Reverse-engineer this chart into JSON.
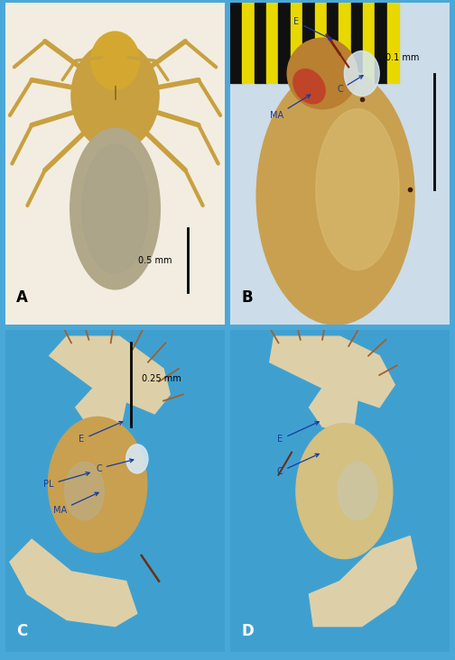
{
  "fig_width": 5.04,
  "fig_height": 7.32,
  "dpi": 100,
  "figure_bg": "#4aa8d8",
  "border_color": "#4aa8d8",
  "panel_A_bg": "#f2ede0",
  "panel_B_bg": "#ccdce8",
  "panel_C_bg": "#3fa0d0",
  "panel_D_bg": "#3fa0d0",
  "label_color": "#1a3a9c",
  "label_fontsize": 12,
  "annotation_fontsize": 7,
  "scale_text_fontsize": 7,
  "panel_A_label": "A",
  "panel_B_label": "B",
  "panel_C_label": "C",
  "panel_D_label": "D",
  "scale_bar_A": "0.5 mm",
  "scale_bar_B": "0.1 mm",
  "scale_bar_C": "0.25 mm",
  "spider_ceph_color": "#c8a040",
  "spider_head_color": "#d4a830",
  "spider_abd_color": "#b0a888",
  "spider_leg_color": "#c8a040",
  "bulb_color": "#c8a050",
  "bulb_highlight": "#ddc078",
  "conductor_color": "#d8e8f2",
  "apophysis_color": "#c04428",
  "palp_body_color": "#ddd0a8",
  "hair_color": "#a06030",
  "stripe_black": "#101010",
  "stripe_yellow": "#e8d800"
}
